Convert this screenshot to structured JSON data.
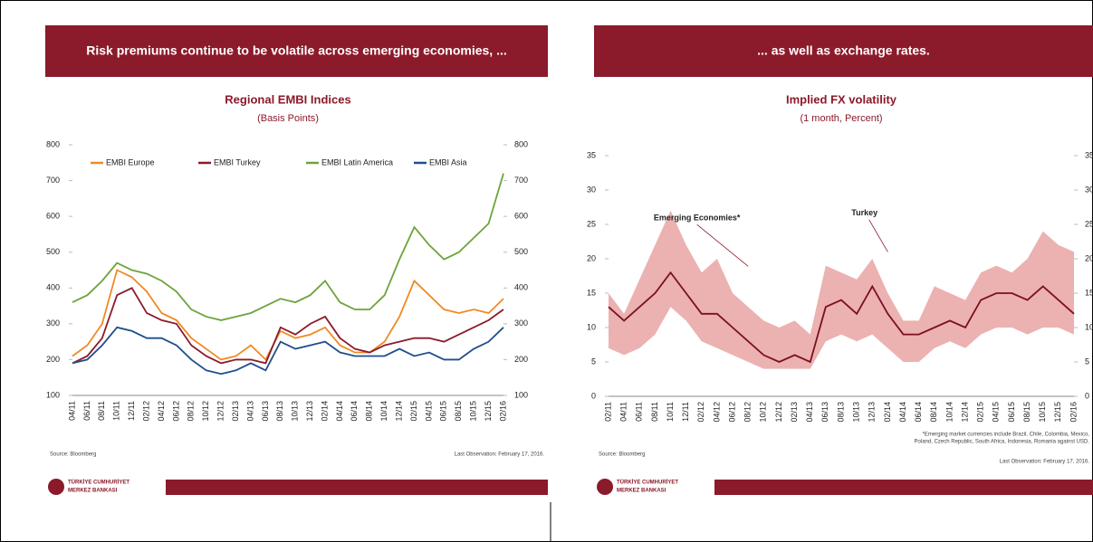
{
  "chart_data": [
    {
      "type": "line",
      "banner": "Risk premiums continue to be volatile across emerging economies, ...",
      "title": "Regional EMBI Indices",
      "subtitle": "(Basis Points)",
      "categories": [
        "04/11",
        "06/11",
        "08/11",
        "10/11",
        "12/11",
        "02/12",
        "04/12",
        "06/12",
        "08/12",
        "10/12",
        "12/12",
        "02/13",
        "04/13",
        "06/13",
        "08/13",
        "10/13",
        "12/13",
        "02/14",
        "04/14",
        "06/14",
        "08/14",
        "10/14",
        "12/14",
        "02/15",
        "04/15",
        "06/15",
        "08/15",
        "10/15",
        "12/15",
        "02/16"
      ],
      "series": [
        {
          "name": "EMBI Europe",
          "color": "#f08a24",
          "values": [
            210,
            240,
            300,
            450,
            430,
            390,
            330,
            310,
            260,
            230,
            200,
            210,
            240,
            200,
            280,
            260,
            270,
            290,
            240,
            220,
            220,
            250,
            320,
            420,
            380,
            340,
            330,
            340,
            330,
            370
          ]
        },
        {
          "name": "EMBI Turkey",
          "color": "#8b1a2a",
          "values": [
            190,
            210,
            260,
            380,
            400,
            330,
            310,
            300,
            240,
            210,
            190,
            200,
            200,
            190,
            290,
            270,
            300,
            320,
            260,
            230,
            220,
            240,
            250,
            260,
            260,
            250,
            270,
            290,
            310,
            340
          ]
        },
        {
          "name": "EMBI Latin America",
          "color": "#6ea33a",
          "values": [
            360,
            380,
            420,
            470,
            450,
            440,
            420,
            390,
            340,
            320,
            310,
            320,
            330,
            350,
            370,
            360,
            380,
            420,
            360,
            340,
            340,
            380,
            480,
            570,
            520,
            480,
            500,
            540,
            580,
            720
          ]
        },
        {
          "name": "EMBI Asia",
          "color": "#1f4e8c",
          "values": [
            190,
            200,
            240,
            290,
            280,
            260,
            260,
            240,
            200,
            170,
            160,
            170,
            190,
            170,
            250,
            230,
            240,
            250,
            220,
            210,
            210,
            210,
            230,
            210,
            220,
            200,
            200,
            230,
            250,
            290
          ]
        }
      ],
      "ylim": [
        100,
        800
      ],
      "yticks": [
        100,
        200,
        300,
        400,
        500,
        600,
        700,
        800
      ],
      "y2lim": [
        100,
        800
      ],
      "y2ticks": [
        100,
        200,
        300,
        400,
        500,
        600,
        700,
        800
      ],
      "legend": "top",
      "grid": false,
      "source": "Source: Bloomberg",
      "last_observation": "Last Observation: February 17, 2016.",
      "logo": [
        "TÜRKİYE CUMHURİYET",
        "MERKEZ BANKASI"
      ]
    },
    {
      "type": "line",
      "banner": "... as well as exchange rates.",
      "title": "Implied FX volatility",
      "subtitle": "(1 month, Percent)",
      "categories": [
        "02/11",
        "04/11",
        "06/11",
        "08/11",
        "10/11",
        "12/11",
        "02/12",
        "04/12",
        "06/12",
        "08/12",
        "10/12",
        "12/12",
        "02/13",
        "04/13",
        "06/13",
        "08/13",
        "10/13",
        "12/13",
        "02/14",
        "04/14",
        "06/14",
        "08/14",
        "10/14",
        "12/14",
        "02/15",
        "04/15",
        "06/15",
        "08/15",
        "10/15",
        "12/15",
        "02/16"
      ],
      "series": [
        {
          "name": "Emerging Economies*",
          "color": "#e9a3a3",
          "low": [
            7,
            6,
            7,
            9,
            13,
            11,
            8,
            7,
            6,
            5,
            4,
            4,
            4,
            4,
            8,
            9,
            8,
            9,
            7,
            5,
            5,
            7,
            8,
            7,
            9,
            10,
            10,
            9,
            10,
            10,
            9
          ],
          "high": [
            15,
            12,
            17,
            22,
            27,
            22,
            18,
            20,
            15,
            13,
            11,
            10,
            11,
            9,
            19,
            18,
            17,
            20,
            15,
            11,
            11,
            16,
            15,
            14,
            18,
            19,
            18,
            20,
            24,
            22,
            21
          ]
        },
        {
          "name": "Turkey",
          "color": "#7a1020",
          "values": [
            13,
            11,
            13,
            15,
            18,
            15,
            12,
            12,
            10,
            8,
            6,
            5,
            6,
            5,
            13,
            14,
            12,
            16,
            12,
            9,
            9,
            10,
            11,
            10,
            14,
            15,
            15,
            14,
            16,
            14,
            12
          ]
        }
      ],
      "ylim": [
        0,
        35
      ],
      "yticks": [
        0,
        5,
        10,
        15,
        20,
        25,
        30,
        35
      ],
      "y2lim": [
        0,
        35
      ],
      "y2ticks": [
        0,
        5,
        10,
        15,
        20,
        25,
        30,
        35
      ],
      "legend": "inline",
      "grid": false,
      "source": "Source: Bloomberg",
      "note": [
        "*Emerging market currencies include Brazil, Chile, Colombia, Mexico,",
        "Poland, Czech Republic, South Africa, Indonesia, Romania against USD."
      ],
      "last_observation": "Last Observation: February 17, 2016.",
      "logo": [
        "TÜRKİYE CUMHURİYET",
        "MERKEZ BANKASI"
      ]
    }
  ]
}
